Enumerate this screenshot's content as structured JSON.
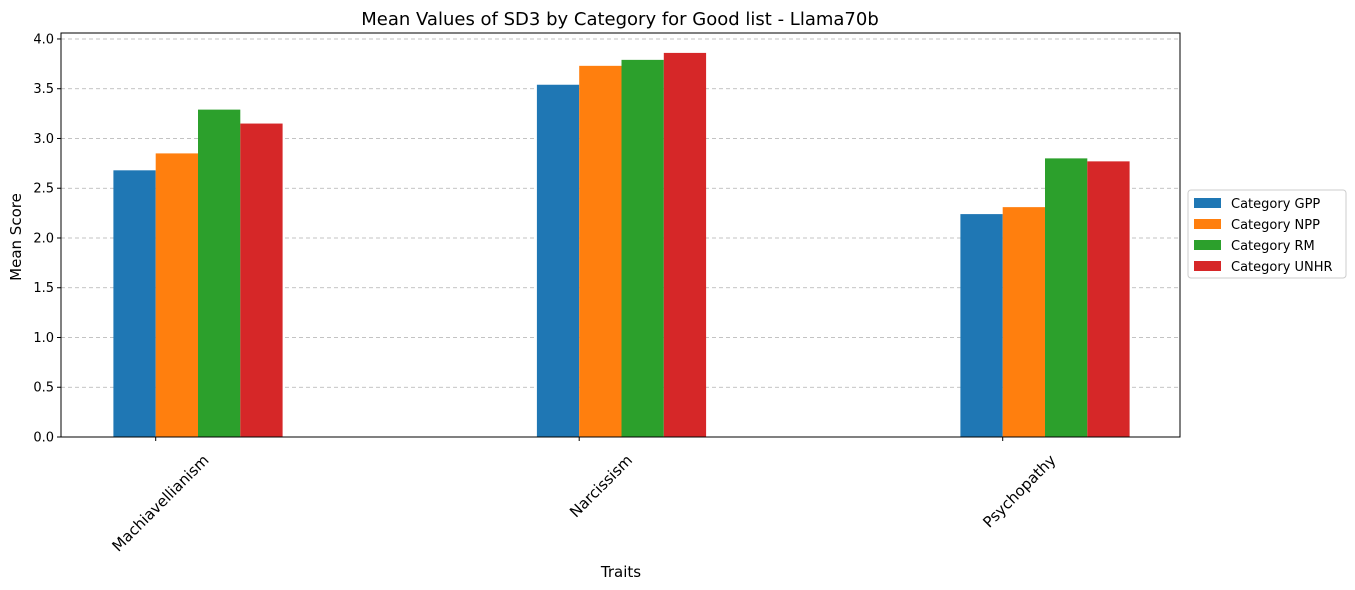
{
  "chart_data": {
    "type": "bar",
    "title": "Mean Values of SD3 by Category for Good list - Llama70b",
    "xlabel": "Traits",
    "ylabel": "Mean Score",
    "categories": [
      "Machiavellianism",
      "Narcissism",
      "Psychopathy"
    ],
    "series": [
      {
        "name": "Category GPP",
        "color": "#1f77b4",
        "values": [
          2.68,
          3.54,
          2.24
        ]
      },
      {
        "name": "Category NPP",
        "color": "#ff7f0e",
        "values": [
          2.85,
          3.73,
          2.31
        ]
      },
      {
        "name": "Category RM",
        "color": "#2ca02c",
        "values": [
          3.29,
          3.79,
          2.8
        ]
      },
      {
        "name": "Category UNHR",
        "color": "#d62728",
        "values": [
          3.15,
          3.86,
          2.77
        ]
      }
    ],
    "ylim": [
      0,
      4.06
    ],
    "yticks": [
      "0.0",
      "0.5",
      "1.0",
      "1.5",
      "2.0",
      "2.5",
      "3.0",
      "3.5",
      "4.0"
    ],
    "grid": true,
    "legend_position": "right-center"
  }
}
